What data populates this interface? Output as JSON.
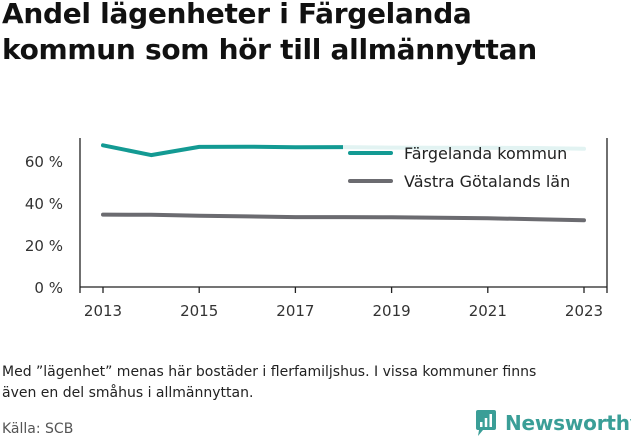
{
  "title": {
    "line1": "Andel lägenheter i Färgelanda",
    "line2": "kommun som hör till allmännyttan"
  },
  "note": {
    "line1": "Med ”lägenhet” menas här bostäder i flerfamiljshus. I vissa kommuner finns",
    "line2": "även en del småhus i allmännyttan."
  },
  "source": "Källa: SCB",
  "brand": {
    "name": "Newsworthy",
    "icon": "newsworthy-logo-icon",
    "color": "#3a9e97"
  },
  "chart_data": {
    "type": "line",
    "title": "Andel lägenheter i Färgelanda kommun som hör till allmännyttan",
    "x": [
      2013,
      2014,
      2015,
      2016,
      2017,
      2018,
      2019,
      2020,
      2021,
      2022,
      2023
    ],
    "series": [
      {
        "name": "Färgelanda kommun",
        "color": "#139a93",
        "values": [
          67.5,
          62.8,
          66.7,
          66.8,
          66.5,
          66.6,
          66.4,
          66.3,
          66.3,
          66.2,
          65.8
        ]
      },
      {
        "name": "Västra Götalands län",
        "color": "#6b6b70",
        "values": [
          34.5,
          34.4,
          33.9,
          33.6,
          33.3,
          33.3,
          33.2,
          33.0,
          32.7,
          32.3,
          31.8
        ]
      }
    ],
    "ylim": [
      0,
      70
    ],
    "yticks": [
      {
        "value": 0,
        "label": "0 %"
      },
      {
        "value": 20,
        "label": "20 %"
      },
      {
        "value": 40,
        "label": "40 %"
      },
      {
        "value": 60,
        "label": "60 %"
      }
    ],
    "xticks": [
      {
        "value": 2013,
        "label": "2013"
      },
      {
        "value": 2015,
        "label": "2015"
      },
      {
        "value": 2017,
        "label": "2017"
      },
      {
        "value": 2019,
        "label": "2019"
      },
      {
        "value": 2021,
        "label": "2021"
      },
      {
        "value": 2023,
        "label": "2023"
      }
    ],
    "grid": false,
    "legend": "top-right",
    "xlabel": "",
    "ylabel": ""
  }
}
